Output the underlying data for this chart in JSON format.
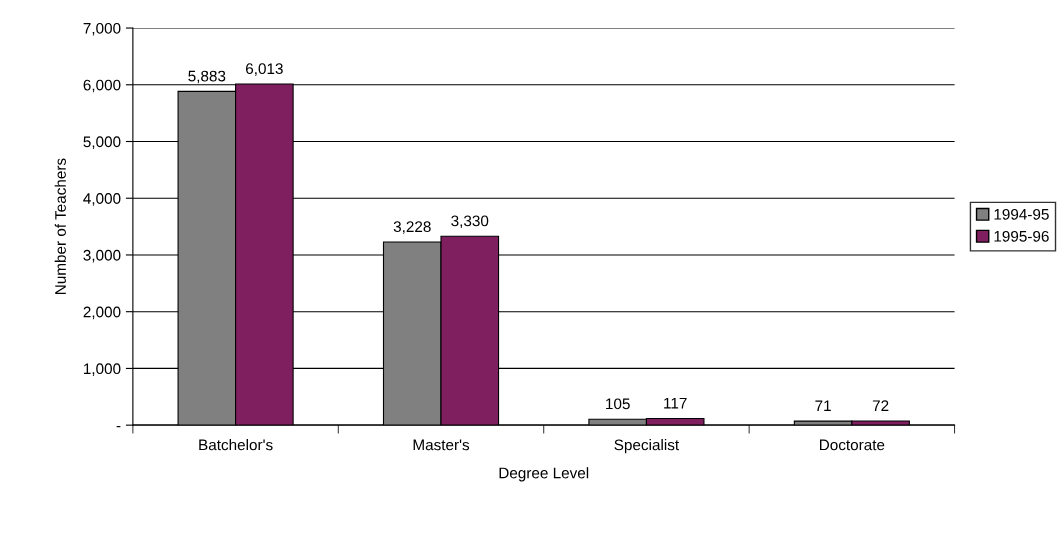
{
  "chart_data": {
    "type": "bar",
    "xlabel": "Degree Level",
    "ylabel": "Number of Teachers",
    "categories": [
      "Batchelor's",
      "Master's",
      "Specialist",
      "Doctorate"
    ],
    "series": [
      {
        "name": "1994-95",
        "color": "#808080",
        "values": [
          5883,
          3228,
          105,
          71
        ],
        "value_labels": [
          "5,883",
          "3,228",
          "105",
          "71"
        ]
      },
      {
        "name": "1995-96",
        "color": "#7f1f5f",
        "values": [
          6013,
          3330,
          117,
          72
        ],
        "value_labels": [
          "6,013",
          "3,330",
          "117",
          "72"
        ]
      }
    ],
    "ylim": [
      0,
      7000
    ],
    "yticks": [
      {
        "value": 0,
        "label": "-"
      },
      {
        "value": 1000,
        "label": "1,000"
      },
      {
        "value": 2000,
        "label": "2,000"
      },
      {
        "value": 3000,
        "label": "3,000"
      },
      {
        "value": 4000,
        "label": "4,000"
      },
      {
        "value": 5000,
        "label": "5,000"
      },
      {
        "value": 6000,
        "label": "6,000"
      },
      {
        "value": 7000,
        "label": "7,000"
      }
    ],
    "grid": "y",
    "legend": "right"
  }
}
